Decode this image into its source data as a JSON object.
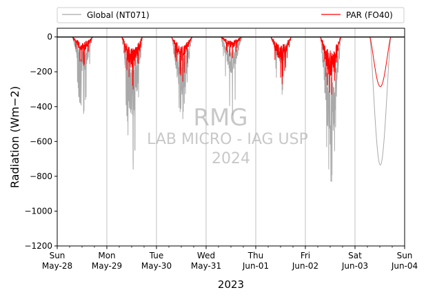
{
  "chart_data": {
    "type": "line",
    "xlabel": "2023",
    "ylabel": "Radiation (Wm−2)",
    "ylim": [
      -1200,
      50
    ],
    "yticks": [
      0,
      -200,
      -400,
      -600,
      -800,
      -1000,
      -1200
    ],
    "ytick_labels": [
      "0",
      "−200",
      "−400",
      "−600",
      "−800",
      "−1000",
      "−1200"
    ],
    "xlim": [
      0,
      7
    ],
    "xticks": [
      0,
      1,
      2,
      3,
      4,
      5,
      6,
      7
    ],
    "xtick_labels": [
      {
        "day": "Sun",
        "date": "May-28"
      },
      {
        "day": "Mon",
        "date": "May-29"
      },
      {
        "day": "Tue",
        "date": "May-30"
      },
      {
        "day": "Wed",
        "date": "May-31"
      },
      {
        "day": "Thu",
        "date": "Jun-01"
      },
      {
        "day": "Fri",
        "date": "Jun-02"
      },
      {
        "day": "Sat",
        "date": "Jun-03"
      },
      {
        "day": "Sun",
        "date": "Jun-04"
      }
    ],
    "grid": "vertical",
    "legend_placement": "top (outside, above plot)",
    "watermark": [
      "RMG",
      "LAB MICRO - IAG USP",
      "2024"
    ],
    "series": [
      {
        "name": "Global (NT071)",
        "color": "#a9a9a9",
        "daily_peak": [
          -440,
          -760,
          -470,
          -450,
          -330,
          -830,
          -735
        ],
        "daily_typical": [
          -200,
          -450,
          -320,
          -200,
          -150,
          -600,
          -735
        ]
      },
      {
        "name": "PAR (FO40)",
        "color": "#ff0000",
        "daily_peak": [
          -165,
          -300,
          -255,
          -120,
          -270,
          -330,
          -285
        ],
        "daily_typical": [
          -80,
          -180,
          -130,
          -60,
          -130,
          -220,
          -285
        ]
      }
    ],
    "zero_line_color": "#000000"
  }
}
